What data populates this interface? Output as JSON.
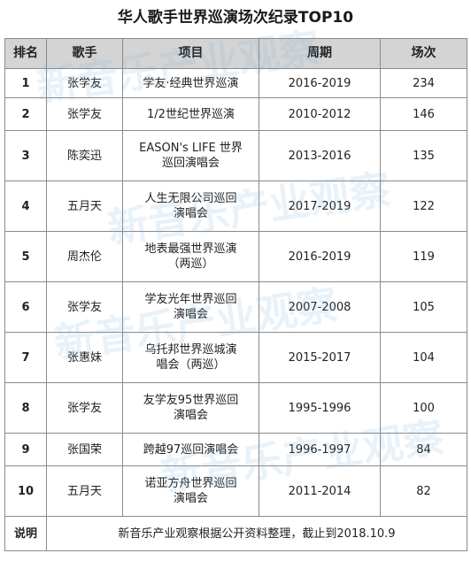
{
  "title": "华人歌手世界巡演场次纪录TOP10",
  "watermark": "新音乐产业观察",
  "columns": [
    "排名",
    "歌手",
    "项目",
    "周期",
    "场次"
  ],
  "rows": [
    {
      "rank": "1",
      "artist": "张学友",
      "project_lines": [
        "学友·经典世界巡演"
      ],
      "period": "2016-2019",
      "shows": "234"
    },
    {
      "rank": "2",
      "artist": "张学友",
      "project_lines": [
        "1/2世纪世界巡演"
      ],
      "period": "2010-2012",
      "shows": "146"
    },
    {
      "rank": "3",
      "artist": "陈奕迅",
      "project_lines": [
        "EASON's LIFE 世界",
        "巡回演唱会"
      ],
      "period": "2013-2016",
      "shows": "135"
    },
    {
      "rank": "4",
      "artist": "五月天",
      "project_lines": [
        "人生无限公司巡回",
        "演唱会"
      ],
      "period": "2017-2019",
      "shows": "122"
    },
    {
      "rank": "5",
      "artist": "周杰伦",
      "project_lines": [
        "地表最强世界巡演",
        "（两巡）"
      ],
      "period": "2016-2019",
      "shows": "119"
    },
    {
      "rank": "6",
      "artist": "张学友",
      "project_lines": [
        "学友光年世界巡回",
        "演唱会"
      ],
      "period": "2007-2008",
      "shows": "105"
    },
    {
      "rank": "7",
      "artist": "张惠妹",
      "project_lines": [
        "乌托邦世界巡城演",
        "唱会（两巡）"
      ],
      "period": "2015-2017",
      "shows": "104"
    },
    {
      "rank": "8",
      "artist": "张学友",
      "project_lines": [
        "友学友95世界巡回",
        "演唱会"
      ],
      "period": "1995-1996",
      "shows": "100"
    },
    {
      "rank": "9",
      "artist": "张国荣",
      "project_lines": [
        "跨越97巡回演唱会"
      ],
      "period": "1996-1997",
      "shows": "84"
    },
    {
      "rank": "10",
      "artist": "五月天",
      "project_lines": [
        "诺亚方舟世界巡回",
        "演唱会"
      ],
      "period": "2011-2014",
      "shows": "82"
    }
  ],
  "note": {
    "label": "说明",
    "text": "新音乐产业观察根据公开资料整理，截止到2018.10.9"
  }
}
